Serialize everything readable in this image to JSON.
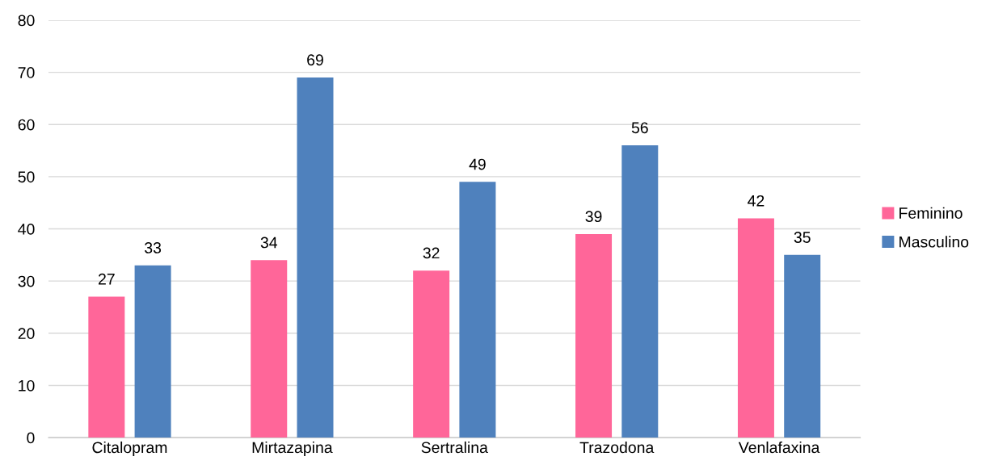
{
  "chart_data": {
    "type": "bar",
    "categories": [
      "Citalopram",
      "Mirtazapina",
      "Sertralina",
      "Trazodona",
      "Venlafaxina"
    ],
    "series": [
      {
        "name": "Feminino",
        "color": "#ff6699",
        "values": [
          27,
          34,
          32,
          39,
          42
        ]
      },
      {
        "name": "Masculino",
        "color": "#4f81bd",
        "values": [
          33,
          69,
          49,
          56,
          35
        ]
      }
    ],
    "ylim": [
      0,
      80
    ],
    "yticks": [
      0,
      10,
      20,
      30,
      40,
      50,
      60,
      70,
      80
    ],
    "grid": "y",
    "legend": "right",
    "data_labels": true
  }
}
